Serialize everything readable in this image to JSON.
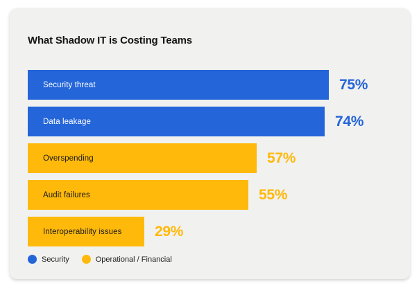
{
  "title": "What Shadow IT is Costing Teams",
  "chart_data": {
    "type": "bar",
    "orientation": "horizontal",
    "title": "What Shadow IT is Costing Teams",
    "unit": "%",
    "value_axis_shown": false,
    "grid": false,
    "legend_position": "bottom-left",
    "categories": [
      "Security threat",
      "Data leakage",
      "Overspending",
      "Audit failures",
      "Interoperability issues"
    ],
    "values": [
      75,
      74,
      57,
      55,
      29
    ],
    "value_labels": [
      "75%",
      "74%",
      "57%",
      "55%",
      "29%"
    ],
    "bar_series": [
      "Security",
      "Security",
      "Operational / Financial",
      "Operational / Financial",
      "Operational / Financial"
    ],
    "series": [
      {
        "name": "Security",
        "color": "#2465D9",
        "label_text_color": "#FFFFFF"
      },
      {
        "name": "Operational / Financial",
        "color": "#FFB90B",
        "label_text_color": "#1A1A1A"
      }
    ],
    "xlim": [
      0,
      100
    ]
  },
  "colors": {
    "card_background": "#F1F1EF",
    "page_background": "#FFFFFF",
    "title_text": "#141414",
    "security_blue": "#2465D9",
    "operational_yellow": "#FFB90B"
  }
}
